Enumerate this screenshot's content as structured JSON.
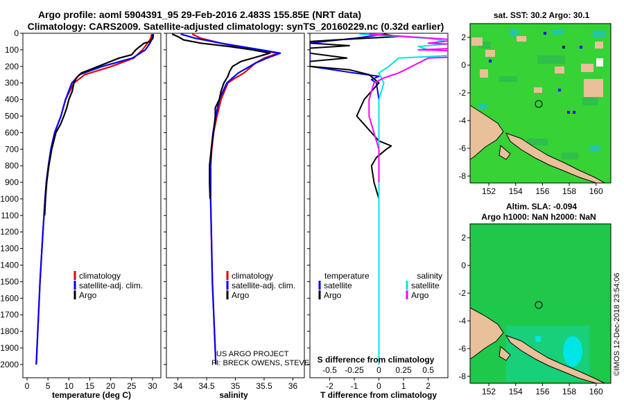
{
  "header": {
    "line1": "Argo profile: aoml 5904391_95 29-Feb-2016 2.483S 155.85E (NRT data)",
    "line2": "Climatology: CARS2009. Satellite-adjusted climatology: synTS_20160229.nc (0.32d earlier)"
  },
  "colors": {
    "climatology": "#e00000",
    "satellite": "#0000ff",
    "argo": "#000000",
    "sal_satellite": "#00e5e5",
    "sal_argo": "#ff00ff"
  },
  "footer": {
    "credit1": "US ARGO PROJECT",
    "credit2": "PI: BRECK OWENS, STEVE JAYNE, P.E. ROBBINS",
    "imos": "©IMOS 12-Dec-2018 23:54:06"
  },
  "chart_data": [
    {
      "type": "line",
      "id": "temperature",
      "xlabel": "temperature (deg C)",
      "ylabel": "",
      "xlim": [
        -1,
        32
      ],
      "ylim": [
        2080,
        0
      ],
      "xticks": [
        0,
        5,
        10,
        15,
        20,
        25,
        30
      ],
      "yticks": [
        0,
        100,
        200,
        300,
        400,
        500,
        600,
        700,
        800,
        900,
        1000,
        1100,
        1200,
        1300,
        1400,
        1500,
        1600,
        1700,
        1800,
        1900,
        2000
      ],
      "legend": [
        "climatology",
        "satellite-adj. clim.",
        "Argo"
      ],
      "series": [
        {
          "name": "climatology",
          "depth": [
            5,
            30,
            60,
            100,
            150,
            200,
            250,
            300,
            400,
            500,
            600,
            700,
            800,
            900,
            1000,
            1200,
            1500,
            2000
          ],
          "values": [
            29.8,
            29.6,
            28.8,
            27.6,
            25.5,
            20.2,
            13.8,
            11.2,
            9.2,
            8.1,
            6.6,
            5.7,
            5.1,
            4.6,
            4.3,
            3.8,
            3.1,
            2.2
          ]
        },
        {
          "name": "satellite-adj. clim.",
          "depth": [
            5,
            30,
            60,
            100,
            150,
            200,
            250,
            300,
            400,
            500,
            600,
            700,
            800,
            900,
            1000,
            1200,
            1500,
            2000
          ],
          "values": [
            30.0,
            29.9,
            29.4,
            28.3,
            25.2,
            18.0,
            12.5,
            10.7,
            9.2,
            8.1,
            6.6,
            5.7,
            5.1,
            4.6,
            4.3,
            3.8,
            3.1,
            2.2
          ]
        },
        {
          "name": "Argo",
          "depth": [
            5,
            30,
            50,
            60,
            80,
            100,
            130,
            150,
            180,
            210,
            240,
            270,
            300,
            350,
            400,
            450,
            500,
            550,
            600,
            700,
            800,
            900,
            1000,
            1100
          ],
          "values": [
            30.2,
            30.1,
            29.5,
            28.0,
            27.0,
            26.0,
            25.0,
            22.0,
            19.0,
            16.0,
            13.0,
            11.8,
            11.2,
            10.8,
            10.0,
            9.5,
            8.8,
            8.0,
            6.9,
            5.9,
            5.2,
            4.7,
            4.4,
            4.2
          ]
        }
      ]
    },
    {
      "type": "line",
      "id": "salinity",
      "xlabel": "salinity",
      "ylabel": "",
      "xlim": [
        33.8,
        36.2
      ],
      "ylim": [
        2080,
        0
      ],
      "xticks": [
        34,
        34.5,
        35,
        35.5,
        36
      ],
      "xticklabels": [
        "34",
        "34.5",
        "35",
        "35.5",
        "36"
      ],
      "legend": [
        "climatology",
        "satellite-adj. clim.",
        "Argo"
      ],
      "series": [
        {
          "name": "climatology",
          "depth": [
            5,
            30,
            60,
            100,
            120,
            150,
            180,
            210,
            240,
            270,
            300,
            400,
            500,
            600,
            700,
            800,
            1000,
            1500,
            2000
          ],
          "values": [
            34.25,
            34.4,
            34.75,
            35.3,
            35.75,
            35.5,
            35.35,
            35.25,
            35.15,
            35.0,
            34.87,
            34.75,
            34.68,
            34.62,
            34.59,
            34.57,
            34.57,
            34.6,
            34.66
          ]
        },
        {
          "name": "satellite-adj. clim.",
          "depth": [
            5,
            30,
            60,
            100,
            120,
            150,
            180,
            210,
            240,
            270,
            300,
            400,
            500,
            600,
            700,
            800,
            1000,
            1500,
            2000
          ],
          "values": [
            34.05,
            34.3,
            34.75,
            35.45,
            35.78,
            35.55,
            35.35,
            35.2,
            35.05,
            34.95,
            34.85,
            34.72,
            34.66,
            34.61,
            34.58,
            34.57,
            34.57,
            34.6,
            34.66
          ]
        },
        {
          "name": "Argo",
          "depth": [
            5,
            20,
            40,
            60,
            80,
            100,
            120,
            140,
            170,
            200,
            230,
            260,
            300,
            350,
            400,
            450,
            500,
            600,
            700,
            800,
            900,
            1000
          ],
          "values": [
            33.9,
            34.0,
            34.1,
            34.4,
            34.9,
            35.3,
            35.6,
            35.4,
            35.1,
            34.95,
            34.9,
            34.87,
            34.8,
            34.75,
            34.72,
            34.65,
            34.65,
            34.62,
            34.58,
            34.55,
            34.55,
            34.56
          ]
        }
      ]
    },
    {
      "type": "line",
      "id": "difference",
      "xlabel": "T difference from climatology",
      "title_secondary": "S difference from climatology",
      "xlim": [
        -2.8,
        2.8
      ],
      "ylim": [
        2080,
        0
      ],
      "xticks": [
        -2,
        -1,
        0,
        1,
        2
      ],
      "xticklabels": [
        "-2",
        "-1",
        "0",
        "1",
        "2"
      ],
      "secondary_xticks": [
        -0.5,
        -0.25,
        0,
        0.25,
        0.5
      ],
      "secondary_xticklabels": [
        "-0.5",
        "-0.25",
        "0",
        "0.25",
        "0.5"
      ],
      "legend_left_title": "temperature",
      "legend_right_title": "salinity",
      "legend_left": [
        "satellite",
        "Argo"
      ],
      "legend_right": [
        "satellite",
        "Argo"
      ],
      "series": [
        {
          "name": "temperature satellite",
          "depth": [
            5,
            30,
            60,
            100,
            150,
            200,
            240,
            260,
            280,
            300,
            400,
            600,
            800,
            1000,
            1500,
            2000
          ],
          "values": [
            0.3,
            -1.0,
            -2.8,
            -2.8,
            -2.8,
            -2.8,
            -1.0,
            0.0,
            -0.3,
            -0.1,
            0.0,
            0.0,
            0.0,
            0.0,
            0.0,
            0.0
          ]
        },
        {
          "name": "temperature Argo",
          "depth": [
            5,
            20,
            40,
            50,
            60,
            75,
            90,
            100,
            120,
            150,
            170,
            200,
            220,
            250,
            300,
            400,
            500,
            550,
            600,
            650,
            680,
            700,
            750,
            800,
            900,
            1000
          ],
          "values": [
            0.2,
            0.8,
            -1.8,
            -2.8,
            -2.8,
            -1.2,
            -2.8,
            -2.8,
            -2.8,
            -1.3,
            -2.8,
            -2.8,
            -1.2,
            -0.4,
            0.0,
            -0.6,
            -0.9,
            -0.6,
            -0.3,
            0.0,
            0.5,
            0.3,
            -0.1,
            -0.3,
            -0.2,
            0.0
          ]
        },
        {
          "name": "salinity satellite",
          "depth": [
            5,
            30,
            60,
            80,
            100,
            120,
            150,
            200,
            240,
            300,
            400,
            600,
            1000,
            1500,
            2000
          ],
          "values": [
            -0.2,
            0.5,
            0.8,
            0.4,
            0.5,
            1.2,
            0.2,
            0.1,
            0.0,
            0.05,
            0.0,
            0.0,
            0.0,
            0.0,
            0.0
          ]
        },
        {
          "name": "salinity Argo",
          "depth": [
            5,
            40,
            60,
            80,
            100,
            120,
            150,
            180,
            210,
            240,
            270,
            300,
            400,
            500,
            700,
            900
          ],
          "values": [
            -0.1,
            0.8,
            0.5,
            1.2,
            0.4,
            1.7,
            0.5,
            0.4,
            0.3,
            0.2,
            0.05,
            -0.05,
            -0.1,
            -0.1,
            0.0,
            0.0
          ]
        }
      ]
    },
    {
      "type": "heatmap",
      "id": "sst_map",
      "title": "sat. SST: 30.2 Argo: 30.1",
      "xticks": [
        152,
        154,
        156,
        158,
        160
      ],
      "yticks": [
        2,
        0,
        -2,
        -4,
        -6,
        -8
      ],
      "xlim": [
        150.6,
        161.1
      ],
      "ylim": [
        -8.5,
        3.0
      ],
      "argo_position": [
        155.85,
        -2.483
      ]
    },
    {
      "type": "heatmap",
      "id": "sla_map",
      "title": "Altim. SLA: -0.094",
      "subtitle": "Argo h1000: NaN h2000: NaN",
      "xticks": [
        152,
        154,
        156,
        158,
        160
      ],
      "yticks": [
        2,
        0,
        -2,
        -4,
        -6,
        -8
      ],
      "xlim": [
        150.6,
        161.1
      ],
      "ylim": [
        -8.5,
        3.0
      ],
      "argo_position": [
        155.85,
        -2.483
      ]
    }
  ]
}
